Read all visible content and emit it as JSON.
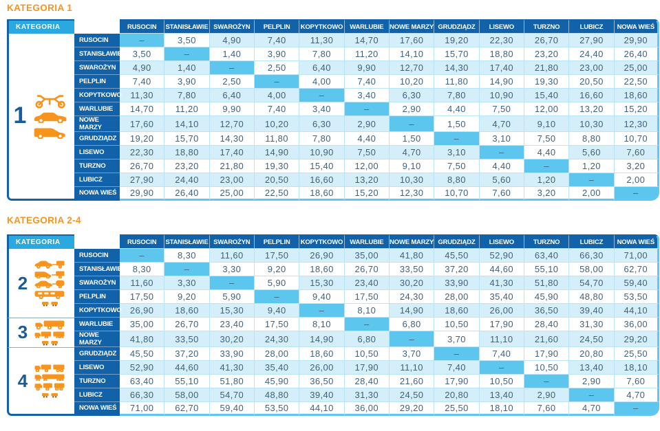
{
  "colors": {
    "title_orange": "#F7941E",
    "header_navy": "#1162A9",
    "corner_cyan": "#2AA9E0",
    "light_cell": "#D4EEFA",
    "diagonal_cell": "#5CC6EE",
    "value_text": "#3F617C",
    "grid_line": "#B9E4F6",
    "outer_edge": "#5FC8EE",
    "group_divider": "#89AFC7",
    "icon_orange": "#F7941D"
  },
  "corner_header": "KATEGORIA",
  "diagonal_symbol": "–",
  "stations": [
    "RUSOCIN",
    "STANISŁAWIE",
    "SWAROŻYN",
    "PELPLIN",
    "KOPYTKOWO",
    "WARLUBIE",
    "NOWE MARZY",
    "GRUDZIĄDZ",
    "LISEWO",
    "TURZNO",
    "LUBICZ",
    "NOWA WIEŚ"
  ],
  "tables": [
    {
      "title": "KATEGORIA 1",
      "categories": [
        {
          "number": "1",
          "rows": 12,
          "icons": [
            "motorcycle-icon",
            "car-icon",
            "van-icon"
          ]
        }
      ],
      "matrix": [
        [
          "–",
          "3,50",
          "4,90",
          "7,40",
          "11,30",
          "14,70",
          "17,60",
          "19,20",
          "22,30",
          "26,70",
          "27,90",
          "29,90"
        ],
        [
          "3,50",
          "–",
          "1,40",
          "3,90",
          "7,80",
          "11,20",
          "14,10",
          "15,70",
          "18,80",
          "23,20",
          "24,40",
          "26,40"
        ],
        [
          "4,90",
          "1,40",
          "–",
          "2,50",
          "6,40",
          "9,90",
          "12,70",
          "14,30",
          "17,40",
          "21,80",
          "23,00",
          "25,00"
        ],
        [
          "7,40",
          "3,90",
          "2,50",
          "–",
          "4,00",
          "7,40",
          "10,20",
          "11,80",
          "14,90",
          "19,30",
          "20,50",
          "22,50"
        ],
        [
          "11,30",
          "7,80",
          "6,40",
          "4,00",
          "–",
          "3,40",
          "6,30",
          "7,80",
          "10,90",
          "15,40",
          "16,60",
          "18,60"
        ],
        [
          "14,70",
          "11,20",
          "9,90",
          "7,40",
          "3,40",
          "–",
          "2,90",
          "4,40",
          "7,50",
          "12,00",
          "13,20",
          "15,20"
        ],
        [
          "17,60",
          "14,10",
          "12,70",
          "10,20",
          "6,30",
          "2,90",
          "–",
          "1,50",
          "4,70",
          "9,10",
          "10,30",
          "12,30"
        ],
        [
          "19,20",
          "15,70",
          "14,30",
          "11,80",
          "7,80",
          "4,40",
          "1,50",
          "–",
          "3,10",
          "7,50",
          "8,80",
          "10,70"
        ],
        [
          "22,30",
          "18,80",
          "17,40",
          "14,90",
          "10,90",
          "7,50",
          "4,70",
          "3,10",
          "–",
          "4,40",
          "5,60",
          "7,60"
        ],
        [
          "26,70",
          "23,20",
          "21,80",
          "19,30",
          "15,40",
          "12,00",
          "9,10",
          "7,50",
          "4,40",
          "–",
          "1,20",
          "3,20"
        ],
        [
          "27,90",
          "24,40",
          "23,00",
          "20,50",
          "16,60",
          "13,20",
          "10,30",
          "8,80",
          "5,60",
          "1,20",
          "–",
          "2,00"
        ],
        [
          "29,90",
          "26,40",
          "25,00",
          "22,50",
          "18,60",
          "15,20",
          "12,30",
          "10,70",
          "7,60",
          "3,20",
          "2,00",
          "–"
        ]
      ]
    },
    {
      "title": "KATEGORIA 2-4",
      "categories": [
        {
          "number": "2",
          "rows": 5,
          "icons": [
            "car-trailer-icon",
            "van-trailer-icon",
            "car-caravan-icon",
            "bus-icon",
            "axles-icon"
          ]
        },
        {
          "number": "3",
          "rows": 2,
          "icons": [
            "truck-icon",
            "truck-trailer-icon",
            "axles-icon"
          ]
        },
        {
          "number": "4",
          "rows": 5,
          "icons": [
            "truck-trailer-icon",
            "semi-truck-icon",
            "road-train-icon",
            "axles-icon"
          ]
        }
      ],
      "matrix": [
        [
          "–",
          "8,30",
          "11,60",
          "17,50",
          "26,90",
          "35,00",
          "41,80",
          "45,50",
          "52,90",
          "63,40",
          "66,30",
          "71,00"
        ],
        [
          "8,30",
          "–",
          "3,30",
          "9,20",
          "18,60",
          "26,70",
          "33,50",
          "37,20",
          "44,60",
          "55,10",
          "58,00",
          "62,70"
        ],
        [
          "11,60",
          "3,30",
          "–",
          "5,90",
          "15,30",
          "23,40",
          "30,20",
          "33,90",
          "41,30",
          "51,80",
          "54,70",
          "59,40"
        ],
        [
          "17,50",
          "9,20",
          "5,90",
          "–",
          "9,40",
          "17,50",
          "24,30",
          "28,00",
          "35,40",
          "45,90",
          "48,80",
          "53,50"
        ],
        [
          "26,90",
          "18,60",
          "15,30",
          "9,40",
          "–",
          "8,10",
          "14,90",
          "18,60",
          "26,00",
          "36,50",
          "39,40",
          "44,10"
        ],
        [
          "35,00",
          "26,70",
          "23,40",
          "17,50",
          "8,10",
          "–",
          "6,80",
          "10,50",
          "17,90",
          "28,40",
          "31,30",
          "36,00"
        ],
        [
          "41,80",
          "33,50",
          "30,20",
          "24,30",
          "14,90",
          "6,80",
          "–",
          "3,70",
          "11,10",
          "21,60",
          "24,50",
          "29,20"
        ],
        [
          "45,50",
          "37,20",
          "33,90",
          "28,00",
          "18,60",
          "10,50",
          "3,70",
          "–",
          "7,40",
          "17,90",
          "20,80",
          "25,50"
        ],
        [
          "52,90",
          "44,60",
          "41,30",
          "35,40",
          "26,00",
          "17,90",
          "11,10",
          "7,40",
          "–",
          "10,50",
          "13,40",
          "18,10"
        ],
        [
          "63,40",
          "55,10",
          "51,80",
          "45,90",
          "36,50",
          "28,40",
          "21,60",
          "17,90",
          "10,50",
          "–",
          "2,90",
          "7,60"
        ],
        [
          "66,30",
          "58,00",
          "54,70",
          "48,80",
          "39,40",
          "31,30",
          "24,50",
          "20,80",
          "13,40",
          "2,90",
          "–",
          "4,70"
        ],
        [
          "71,00",
          "62,70",
          "59,40",
          "53,50",
          "44,10",
          "36,00",
          "29,20",
          "25,50",
          "18,10",
          "7,60",
          "4,70",
          "–"
        ]
      ]
    }
  ]
}
